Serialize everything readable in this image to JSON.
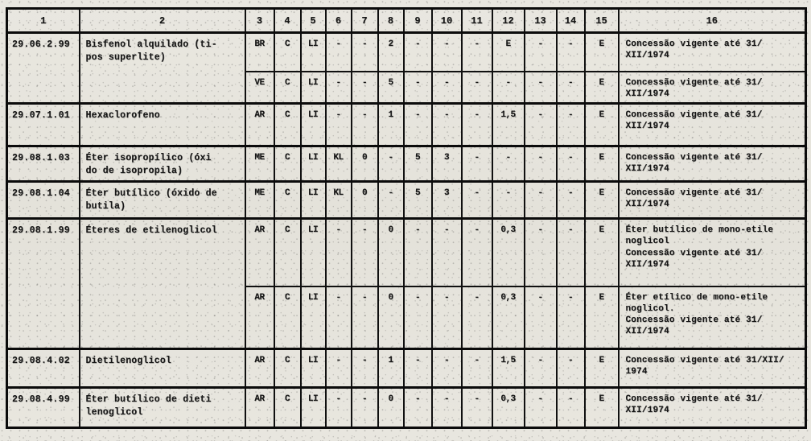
{
  "document": {
    "type": "scanned-typewritten-concession-table",
    "ink_color": "#161616",
    "paper_color": "#e7e5de"
  },
  "table": {
    "headers": [
      "1",
      "2",
      "3",
      "4",
      "5",
      "6",
      "7",
      "8",
      "9",
      "10",
      "11",
      "12",
      "13",
      "14",
      "15",
      "16"
    ],
    "groups": [
      {
        "code": "29.06.2.99",
        "name": "Bisfenol alquilado (ti-\npos superlite)",
        "rows": [
          {
            "cols": [
              "BR",
              "C",
              "LI",
              "-",
              "-",
              "2",
              "-",
              "-",
              "-",
              "E",
              "-",
              "-",
              "E"
            ],
            "obs": "Concessão vigente até 31/\nXII/1974"
          },
          {
            "cols": [
              "VE",
              "C",
              "LI",
              "-",
              "-",
              "5",
              "-",
              "-",
              "-",
              "-",
              "-",
              "-",
              "E"
            ],
            "obs": "Concessão vigente até 31/\nXII/1974"
          }
        ]
      },
      {
        "code": "29.07.1.01",
        "name": "Hexaclorofeno",
        "rows": [
          {
            "cols": [
              "AR",
              "C",
              "LI",
              "-",
              "-",
              "1",
              "-",
              "-",
              "-",
              "1,5",
              "-",
              "-",
              "E"
            ],
            "obs": "Concessão vigente até 31/\nXII/1974"
          }
        ]
      },
      {
        "code": "29.08.1.03",
        "name": "Éter isopropílico (óxi\ndo de isopropila)",
        "rows": [
          {
            "cols": [
              "ME",
              "C",
              "LI",
              "KL",
              "0",
              "-",
              "5",
              "3",
              "-",
              "-",
              "-",
              "-",
              "E"
            ],
            "obs": "Concessão vigente até 31/\nXII/1974"
          }
        ]
      },
      {
        "code": "29.08.1.04",
        "name": "Éter butílico (óxido de\nbutila)",
        "rows": [
          {
            "cols": [
              "ME",
              "C",
              "LI",
              "KL",
              "0",
              "-",
              "5",
              "3",
              "-",
              "-",
              "-",
              "-",
              "E"
            ],
            "obs": "Concessão vigente até 31/\nXII/1974"
          }
        ]
      },
      {
        "code": "29.08.1.99",
        "name": "Éteres de etilenoglicol",
        "rows": [
          {
            "cols": [
              "AR",
              "C",
              "LI",
              "-",
              "-",
              "0",
              "-",
              "-",
              "-",
              "0,3",
              "-",
              "-",
              "E"
            ],
            "obs": "Éter butílico de mono-etile\nnoglicol\nConcessão vigente até 31/\nXII/1974"
          },
          {
            "cols": [
              "AR",
              "C",
              "LI",
              "-",
              "-",
              "0",
              "-",
              "-",
              "-",
              "0,3",
              "-",
              "-",
              "E"
            ],
            "obs": "Éter etílico de mono-etile\nnoglicol.\nConcessão vigente até 31/\nXII/1974"
          }
        ]
      },
      {
        "code": "29.08.4.02",
        "name": "Dietilenoglicol",
        "rows": [
          {
            "cols": [
              "AR",
              "C",
              "LI",
              "-",
              "-",
              "1",
              "-",
              "-",
              "-",
              "1,5",
              "-",
              "-",
              "E"
            ],
            "obs": "Concessão vigente até 31/XII/\n1974"
          }
        ]
      },
      {
        "code": "29.08.4.99",
        "name": "Éter butílico de dieti\nlenoglicol",
        "rows": [
          {
            "cols": [
              "AR",
              "C",
              "LI",
              "-",
              "-",
              "0",
              "-",
              "-",
              "-",
              "0,3",
              "-",
              "-",
              "E"
            ],
            "obs": "Concessão vigente até 31/\nXII/1974"
          }
        ]
      }
    ]
  }
}
